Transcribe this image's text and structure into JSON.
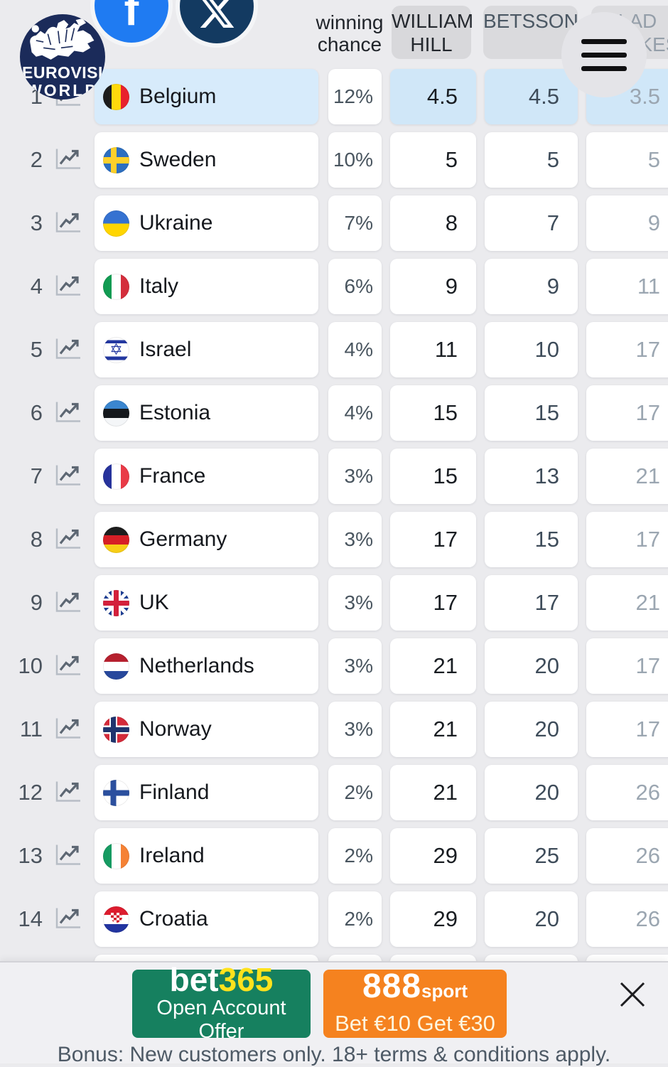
{
  "logo": {
    "line1": "EUROVISION",
    "line2": "WORLD"
  },
  "social": {
    "facebook_glyph": "f"
  },
  "header": {
    "winning_chance": {
      "line1": "winning",
      "line2": "chance"
    },
    "bookmakers": [
      {
        "name": "WILLIAM HILL",
        "line1": "WILLIAM",
        "line2": "HILL"
      },
      {
        "name": "BETSSON",
        "line1": "BETSSON",
        "line2": ""
      },
      {
        "name": "LADBROKES",
        "line1": "LAD",
        "line2": "BROKES"
      }
    ]
  },
  "table": {
    "columns": [
      "rank",
      "country",
      "winning chance",
      "WILLIAM HILL",
      "BETSSON",
      "LADBROKES"
    ],
    "rows": [
      {
        "rank": "1",
        "country": "Belgium",
        "flag": "be",
        "chance": "12%",
        "william_hill": "4.5",
        "betsson": "4.5",
        "ladbrokes": "3.5",
        "highlight": true,
        "partial": false
      },
      {
        "rank": "2",
        "country": "Sweden",
        "flag": "se",
        "chance": "10%",
        "william_hill": "5",
        "betsson": "5",
        "ladbrokes": "5",
        "highlight": false,
        "partial": false
      },
      {
        "rank": "3",
        "country": "Ukraine",
        "flag": "ua",
        "chance": "7%",
        "william_hill": "8",
        "betsson": "7",
        "ladbrokes": "9",
        "highlight": false,
        "partial": false
      },
      {
        "rank": "4",
        "country": "Italy",
        "flag": "it",
        "chance": "6%",
        "william_hill": "9",
        "betsson": "9",
        "ladbrokes": "11",
        "highlight": false,
        "partial": false
      },
      {
        "rank": "5",
        "country": "Israel",
        "flag": "il",
        "chance": "4%",
        "william_hill": "11",
        "betsson": "10",
        "ladbrokes": "17",
        "highlight": false,
        "partial": false
      },
      {
        "rank": "6",
        "country": "Estonia",
        "flag": "ee",
        "chance": "4%",
        "william_hill": "15",
        "betsson": "15",
        "ladbrokes": "17",
        "highlight": false,
        "partial": false
      },
      {
        "rank": "7",
        "country": "France",
        "flag": "fr",
        "chance": "3%",
        "william_hill": "15",
        "betsson": "13",
        "ladbrokes": "21",
        "highlight": false,
        "partial": false
      },
      {
        "rank": "8",
        "country": "Germany",
        "flag": "de",
        "chance": "3%",
        "william_hill": "17",
        "betsson": "15",
        "ladbrokes": "17",
        "highlight": false,
        "partial": false
      },
      {
        "rank": "9",
        "country": "UK",
        "flag": "gb",
        "chance": "3%",
        "william_hill": "17",
        "betsson": "17",
        "ladbrokes": "21",
        "highlight": false,
        "partial": false
      },
      {
        "rank": "10",
        "country": "Netherlands",
        "flag": "nl",
        "chance": "3%",
        "william_hill": "21",
        "betsson": "20",
        "ladbrokes": "17",
        "highlight": false,
        "partial": false
      },
      {
        "rank": "11",
        "country": "Norway",
        "flag": "no",
        "chance": "3%",
        "william_hill": "21",
        "betsson": "20",
        "ladbrokes": "17",
        "highlight": false,
        "partial": false
      },
      {
        "rank": "12",
        "country": "Finland",
        "flag": "fi",
        "chance": "2%",
        "william_hill": "21",
        "betsson": "20",
        "ladbrokes": "26",
        "highlight": false,
        "partial": false
      },
      {
        "rank": "13",
        "country": "Ireland",
        "flag": "ie",
        "chance": "2%",
        "william_hill": "29",
        "betsson": "25",
        "ladbrokes": "26",
        "highlight": false,
        "partial": false
      },
      {
        "rank": "14",
        "country": "Croatia",
        "flag": "hr",
        "chance": "2%",
        "william_hill": "29",
        "betsson": "20",
        "ladbrokes": "26",
        "highlight": false,
        "partial": false
      },
      {
        "rank": "",
        "country": "",
        "flag": "",
        "chance": "",
        "william_hill": "",
        "betsson": "",
        "ladbrokes": "",
        "highlight": false,
        "partial": true
      }
    ]
  },
  "banners": {
    "bet365": {
      "brand_white": "bet",
      "brand_yellow": "365",
      "offer": "Open Account Offer"
    },
    "sport888": {
      "brand_number": "888",
      "brand_suffix": "sport",
      "offer": "Bet €10 Get €30"
    }
  },
  "footer": {
    "note": "Bonus: New customers only. 18+ terms & conditions apply."
  }
}
